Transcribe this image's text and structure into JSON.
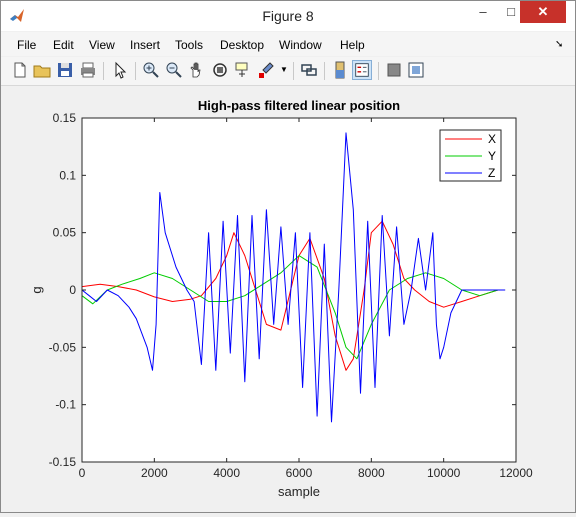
{
  "window": {
    "title": "Figure 8",
    "minimize": "–",
    "maximize": "□",
    "close": "✕"
  },
  "menu": [
    "File",
    "Edit",
    "View",
    "Insert",
    "Tools",
    "Desktop",
    "Window",
    "Help"
  ],
  "toolbar": [
    "new-figure-icon",
    "open-file-icon",
    "save-icon",
    "print-icon",
    "select-arrow-icon",
    "zoom-in-icon",
    "zoom-out-icon",
    "pan-icon",
    "rotate-3d-icon",
    "data-cursor-icon",
    "brush-icon",
    "link-plot-icon",
    "colorbar-icon",
    "legend-icon",
    "hide-plot-tools-icon",
    "show-plot-tools-icon"
  ],
  "colors": {
    "X": "#ff0000",
    "Y": "#00cc00",
    "Z": "#0000ff"
  },
  "chart_data": {
    "type": "line",
    "title": "High-pass filtered linear position",
    "xlabel": "sample",
    "ylabel": "g",
    "xlim": [
      0,
      12000
    ],
    "ylim": [
      -0.15,
      0.15
    ],
    "xticks": [
      "0",
      "2000",
      "4000",
      "6000",
      "8000",
      "10000",
      "12000"
    ],
    "yticks": [
      "0.15",
      "0.1",
      "0.05",
      "0",
      "-0.05",
      "-0.1",
      "-0.15"
    ],
    "grid": false,
    "legend_position": "top-right",
    "series": [
      {
        "name": "X",
        "x": [
          0,
          500,
          1000,
          1500,
          2000,
          2500,
          3000,
          3300,
          3700,
          4000,
          4200,
          4500,
          4800,
          5100,
          5500,
          6000,
          6300,
          6700,
          7000,
          7300,
          7500,
          7800,
          8000,
          8300,
          8600,
          8900,
          9200,
          9600,
          10000,
          10500,
          11000,
          11500,
          11700
        ],
        "values": [
          0.003,
          0.005,
          0.003,
          0.0,
          -0.006,
          -0.01,
          -0.008,
          -0.005,
          0.01,
          0.03,
          0.05,
          0.03,
          0.0,
          -0.03,
          -0.035,
          0.03,
          0.045,
          0.01,
          -0.04,
          -0.07,
          -0.06,
          0.0,
          0.05,
          0.06,
          0.04,
          0.01,
          0.0,
          -0.01,
          -0.015,
          -0.01,
          -0.005,
          0.0,
          0.0
        ]
      },
      {
        "name": "Y",
        "x": [
          0,
          300,
          700,
          1100,
          1600,
          2000,
          2500,
          3000,
          3500,
          4000,
          4500,
          5000,
          5500,
          6000,
          6500,
          7000,
          7300,
          7600,
          8000,
          8500,
          9000,
          9500,
          10000,
          10500,
          11000,
          11500,
          11700
        ],
        "values": [
          -0.005,
          -0.012,
          0.0,
          0.005,
          0.01,
          0.015,
          0.01,
          0.0,
          -0.01,
          -0.01,
          -0.005,
          0.005,
          0.015,
          0.03,
          0.02,
          -0.02,
          -0.05,
          -0.06,
          -0.03,
          0.0,
          0.01,
          0.015,
          0.01,
          0.0,
          -0.005,
          0.0,
          0.0
        ]
      },
      {
        "name": "Z",
        "x": [
          0,
          200,
          400,
          700,
          1000,
          1300,
          1500,
          1800,
          1950,
          2050,
          2150,
          2300,
          2600,
          2900,
          3100,
          3300,
          3500,
          3700,
          3900,
          4100,
          4300,
          4500,
          4700,
          4900,
          5100,
          5300,
          5500,
          5700,
          5900,
          6100,
          6300,
          6500,
          6700,
          6900,
          7100,
          7300,
          7500,
          7700,
          7900,
          8100,
          8300,
          8500,
          8700,
          8900,
          9100,
          9300,
          9500,
          9700,
          9800,
          9900,
          10000,
          10200,
          10500,
          10900,
          11400,
          11700
        ],
        "values": [
          0.0,
          -0.005,
          -0.01,
          0.0,
          -0.005,
          -0.015,
          -0.025,
          -0.05,
          -0.07,
          -0.03,
          0.085,
          0.05,
          0.02,
          0.0,
          -0.01,
          -0.065,
          0.05,
          -0.07,
          0.06,
          -0.055,
          0.065,
          -0.08,
          0.065,
          -0.06,
          0.07,
          -0.03,
          0.055,
          -0.03,
          0.05,
          -0.085,
          0.05,
          -0.11,
          0.04,
          -0.115,
          0.0,
          0.137,
          0.07,
          -0.09,
          0.06,
          -0.085,
          0.065,
          -0.04,
          0.055,
          -0.03,
          0.0,
          0.045,
          0.0,
          0.05,
          -0.03,
          -0.06,
          -0.05,
          -0.02,
          0.0,
          0.0,
          0.0,
          0.0
        ]
      }
    ]
  }
}
